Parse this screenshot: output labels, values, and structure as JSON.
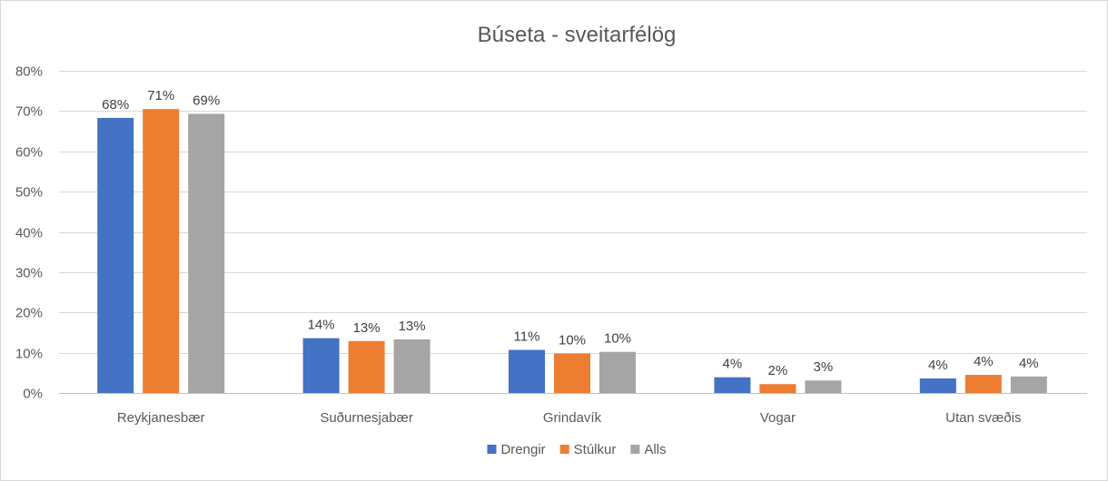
{
  "chart_data": {
    "type": "bar",
    "title": "Búseta - sveitarfélög",
    "xlabel": "",
    "ylabel": "",
    "categories": [
      "Reykjanesbær",
      "Suðurnesjabær",
      "Grindavík",
      "Vogar",
      "Utan svæðis"
    ],
    "series": [
      {
        "name": "Drengir",
        "color": "#4472c4",
        "values": [
          0.683,
          0.136,
          0.107,
          0.039,
          0.036
        ],
        "labels": [
          "68%",
          "14%",
          "11%",
          "4%",
          "4%"
        ]
      },
      {
        "name": "Stúlkur",
        "color": "#ed7d31",
        "values": [
          0.705,
          0.129,
          0.098,
          0.022,
          0.045
        ],
        "labels": [
          "71%",
          "13%",
          "10%",
          "2%",
          "4%"
        ]
      },
      {
        "name": "Alls",
        "color": "#a5a5a5",
        "values": [
          0.693,
          0.133,
          0.102,
          0.031,
          0.041
        ],
        "labels": [
          "69%",
          "13%",
          "10%",
          "3%",
          "4%"
        ]
      }
    ],
    "ylim": [
      0,
      0.8
    ],
    "yticks": [
      0,
      0.1,
      0.2,
      0.3,
      0.4,
      0.5,
      0.6,
      0.7,
      0.8
    ],
    "ytick_labels": [
      "0%",
      "10%",
      "20%",
      "30%",
      "40%",
      "50%",
      "60%",
      "70%",
      "80%"
    ],
    "grid": true,
    "legend_position": "bottom"
  }
}
